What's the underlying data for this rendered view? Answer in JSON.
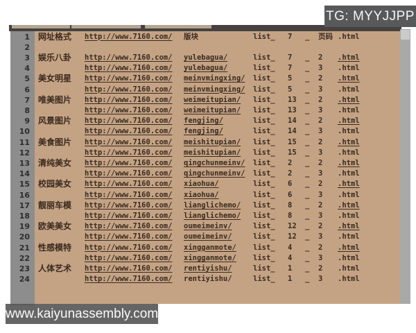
{
  "overlay": {
    "tg_label": "TG: MYYJJPP",
    "watermark": "www.kaiyunassembly.com"
  },
  "colors": {
    "sheet_background": "#c4a385",
    "row_number_column": "#8d8d8d",
    "header_strip": "#46413e",
    "text": "#3a2a1e",
    "badge_background": "#58595b",
    "scrollbar_track": "#a9a9a9"
  },
  "table": {
    "base_url": "http://www.7160.com/",
    "list_prefix": "list_",
    "separator": "_",
    "html_suffix": ".html",
    "rows": [
      {
        "n": "1",
        "cat": "网址格式",
        "path": "版块",
        "board": "7",
        "page": "页码",
        "url": true,
        "path_u": false,
        "html_u": false
      },
      {
        "n": "2",
        "empty": true
      },
      {
        "n": "3",
        "cat": "娱乐八卦",
        "path": "yulebagua/",
        "board": "7",
        "page": "2",
        "url": true,
        "path_u": true,
        "html_u": true
      },
      {
        "n": "4",
        "cat": "",
        "path": "yulebagua/",
        "board": "7",
        "page": "3",
        "url": true,
        "path_u": true,
        "html_u": false
      },
      {
        "n": "5",
        "cat": "美女明星",
        "path": "meinvmingxing/",
        "board": "5",
        "page": "2",
        "url": true,
        "path_u": true,
        "html_u": true
      },
      {
        "n": "6",
        "cat": "",
        "path": "meinvmingxing/",
        "board": "5",
        "page": "3",
        "url": true,
        "path_u": true,
        "html_u": false
      },
      {
        "n": "7",
        "cat": "唯美图片",
        "path": "weimeitupian/",
        "board": "13",
        "page": "2",
        "url": true,
        "path_u": true,
        "html_u": true
      },
      {
        "n": "8",
        "cat": "",
        "path": "weimeitupian/",
        "board": "13",
        "page": "3",
        "url": true,
        "path_u": true,
        "html_u": false
      },
      {
        "n": "9",
        "cat": "风景图片",
        "path": "fengjing/",
        "board": "14",
        "page": "2",
        "url": true,
        "path_u": true,
        "html_u": true
      },
      {
        "n": "10",
        "cat": "",
        "path": "fengjing/",
        "board": "14",
        "page": "3",
        "url": true,
        "path_u": true,
        "html_u": false
      },
      {
        "n": "11",
        "cat": "美食图片",
        "path": "meishitupian/",
        "board": "15",
        "page": "2",
        "url": true,
        "path_u": true,
        "html_u": true
      },
      {
        "n": "12",
        "cat": "",
        "path": "meishitupian/",
        "board": "15",
        "page": "3",
        "url": true,
        "path_u": true,
        "html_u": false
      },
      {
        "n": "13",
        "cat": "清纯美女",
        "path": "qingchunmeinv/",
        "board": "2",
        "page": "2",
        "url": true,
        "path_u": true,
        "html_u": true
      },
      {
        "n": "14",
        "cat": "",
        "path": "qingchunmeinv/",
        "board": "2",
        "page": "3",
        "url": true,
        "path_u": true,
        "html_u": false
      },
      {
        "n": "15",
        "cat": "校园美女",
        "path": "xiaohua/",
        "board": "6",
        "page": "2",
        "url": true,
        "path_u": true,
        "html_u": true
      },
      {
        "n": "16",
        "cat": "",
        "path": "xiaohua/",
        "board": "6",
        "page": "3",
        "url": true,
        "path_u": true,
        "html_u": false
      },
      {
        "n": "17",
        "cat": "靓丽车模",
        "path": "lianglichemo/",
        "board": "8",
        "page": "2",
        "url": true,
        "path_u": true,
        "html_u": true
      },
      {
        "n": "18",
        "cat": "",
        "path": "lianglichemo/",
        "board": "8",
        "page": "3",
        "url": true,
        "path_u": true,
        "html_u": false
      },
      {
        "n": "19",
        "cat": "欧美美女",
        "path": "oumeimeinv/",
        "board": "12",
        "page": "2",
        "url": true,
        "path_u": true,
        "html_u": true
      },
      {
        "n": "20",
        "cat": "",
        "path": "oumeimeinv/",
        "board": "12",
        "page": "3",
        "url": true,
        "path_u": true,
        "html_u": false
      },
      {
        "n": "21",
        "cat": "性感模特",
        "path": "xingganmote/",
        "board": "4",
        "page": "2",
        "url": true,
        "path_u": true,
        "html_u": true
      },
      {
        "n": "22",
        "cat": "",
        "path": "xingganmote/",
        "board": "4",
        "page": "3",
        "url": true,
        "path_u": true,
        "html_u": false
      },
      {
        "n": "23",
        "cat": "人体艺术",
        "path": "rentiyishu/",
        "board": "1",
        "page": "2",
        "url": true,
        "path_u": true,
        "html_u": false
      },
      {
        "n": "24",
        "cat": "",
        "path": "rentiyishu/",
        "board": "1",
        "page": "3",
        "url": true,
        "path_u": false,
        "html_u": false
      }
    ]
  }
}
